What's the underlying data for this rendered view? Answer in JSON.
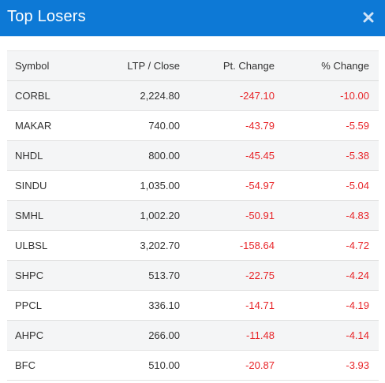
{
  "header": {
    "title": "Top Losers",
    "close_icon": "close-icon",
    "background": "#0d79d6"
  },
  "table": {
    "columns": [
      "Symbol",
      "LTP / Close",
      "Pt. Change",
      "% Change"
    ],
    "negative_color": "#e8262a",
    "rows": [
      {
        "symbol": "CORBL",
        "ltp": "2,224.80",
        "pt_change": "-247.10",
        "pct_change": "-10.00"
      },
      {
        "symbol": "MAKAR",
        "ltp": "740.00",
        "pt_change": "-43.79",
        "pct_change": "-5.59"
      },
      {
        "symbol": "NHDL",
        "ltp": "800.00",
        "pt_change": "-45.45",
        "pct_change": "-5.38"
      },
      {
        "symbol": "SINDU",
        "ltp": "1,035.00",
        "pt_change": "-54.97",
        "pct_change": "-5.04"
      },
      {
        "symbol": "SMHL",
        "ltp": "1,002.20",
        "pt_change": "-50.91",
        "pct_change": "-4.83"
      },
      {
        "symbol": "ULBSL",
        "ltp": "3,202.70",
        "pt_change": "-158.64",
        "pct_change": "-4.72"
      },
      {
        "symbol": "SHPC",
        "ltp": "513.70",
        "pt_change": "-22.75",
        "pct_change": "-4.24"
      },
      {
        "symbol": "PPCL",
        "ltp": "336.10",
        "pt_change": "-14.71",
        "pct_change": "-4.19"
      },
      {
        "symbol": "AHPC",
        "ltp": "266.00",
        "pt_change": "-11.48",
        "pct_change": "-4.14"
      },
      {
        "symbol": "BFC",
        "ltp": "510.00",
        "pt_change": "-20.87",
        "pct_change": "-3.93"
      }
    ]
  }
}
